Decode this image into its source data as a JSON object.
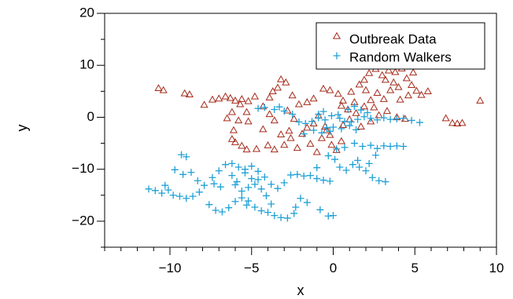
{
  "chart_data": {
    "type": "scatter",
    "title": "",
    "xlabel": "x",
    "ylabel": "y",
    "xlim": [
      -14,
      10
    ],
    "ylim": [
      -25,
      20
    ],
    "xticks": [
      -10,
      -5,
      0,
      5,
      10
    ],
    "xtick_labels": [
      "−10",
      "−5",
      "0",
      "5",
      "10"
    ],
    "yticks": [
      -20,
      -10,
      0,
      10,
      20
    ],
    "ytick_labels": [
      "−20",
      "−10",
      "0",
      "10",
      "20"
    ],
    "grid": false,
    "legend_position": "top-right",
    "series": [
      {
        "name": "Outbreak Data",
        "marker": "triangle-open",
        "color": "#a52a1a",
        "points": [
          [
            -10.7,
            5.6
          ],
          [
            -10.4,
            5.2
          ],
          [
            -9.1,
            4.6
          ],
          [
            -8.8,
            4.4
          ],
          [
            -7.9,
            2.4
          ],
          [
            -7.0,
            3.6
          ],
          [
            -6.6,
            4.0
          ],
          [
            -6.3,
            3.7
          ],
          [
            -6.0,
            3.2
          ],
          [
            -5.6,
            3.5
          ],
          [
            -5.2,
            3.1
          ],
          [
            -5.7,
            2.5
          ],
          [
            -6.2,
            1.0
          ],
          [
            -5.8,
            -0.6
          ],
          [
            -5.2,
            -0.8
          ],
          [
            -5.3,
            1.0
          ],
          [
            -4.8,
            4.0
          ],
          [
            -4.3,
            2.1
          ],
          [
            -3.9,
            3.8
          ],
          [
            -3.7,
            5.0
          ],
          [
            -3.4,
            5.7
          ],
          [
            -2.9,
            6.7
          ],
          [
            -3.2,
            7.3
          ],
          [
            -2.5,
            4.2
          ],
          [
            -2.1,
            2.5
          ],
          [
            -1.6,
            2.9
          ],
          [
            -1.2,
            3.6
          ],
          [
            -0.6,
            5.5
          ],
          [
            -0.2,
            5.2
          ],
          [
            0.3,
            4.5
          ],
          [
            0.6,
            3.2
          ],
          [
            1.1,
            4.9
          ],
          [
            1.6,
            6.3
          ],
          [
            1.9,
            7.2
          ],
          [
            2.2,
            8.5
          ],
          [
            2.6,
            9.3
          ],
          [
            3.0,
            8.1
          ],
          [
            3.4,
            9.0
          ],
          [
            3.8,
            8.7
          ],
          [
            4.2,
            9.4
          ],
          [
            4.5,
            7.5
          ],
          [
            4.8,
            6.2
          ],
          [
            4.6,
            4.2
          ],
          [
            4.1,
            3.4
          ],
          [
            3.5,
            5.2
          ],
          [
            3.1,
            3.5
          ],
          [
            2.7,
            4.7
          ],
          [
            2.3,
            3.3
          ],
          [
            1.9,
            2.1
          ],
          [
            1.4,
            0.8
          ],
          [
            0.9,
            1.5
          ],
          [
            0.5,
            2.2
          ],
          [
            5.1,
            5.1
          ],
          [
            5.4,
            4.3
          ],
          [
            5.8,
            5.0
          ],
          [
            4.0,
            5.8
          ],
          [
            -6.5,
            -0.2
          ],
          [
            -6.1,
            -2.5
          ],
          [
            -6.2,
            -4.2
          ],
          [
            -6.0,
            -4.8
          ],
          [
            -5.6,
            -5.5
          ],
          [
            -5.3,
            -6.2
          ],
          [
            -4.7,
            -6.1
          ],
          [
            -4.0,
            -5.4
          ],
          [
            -3.6,
            -6.2
          ],
          [
            -3.0,
            -5.3
          ],
          [
            -2.6,
            -4.0
          ],
          [
            -2.2,
            -5.9
          ],
          [
            -1.9,
            -3.2
          ],
          [
            -1.4,
            -5.1
          ],
          [
            -1.0,
            -6.7
          ],
          [
            -0.7,
            -4.0
          ],
          [
            -0.4,
            -2.5
          ],
          [
            -0.1,
            -5.3
          ],
          [
            0.2,
            -6.3
          ],
          [
            0.5,
            -4.6
          ],
          [
            -4.3,
            -2.3
          ],
          [
            -3.6,
            -0.6
          ],
          [
            -3.2,
            -3.3
          ],
          [
            -2.7,
            -2.6
          ],
          [
            -1.6,
            -2.0
          ],
          [
            -1.2,
            -1.2
          ],
          [
            -0.9,
            0.3
          ],
          [
            -0.5,
            -1.8
          ],
          [
            -0.2,
            -3.4
          ],
          [
            0.6,
            -1.5
          ],
          [
            1.0,
            -0.4
          ],
          [
            1.7,
            -1.8
          ],
          [
            2.3,
            -0.8
          ],
          [
            2.8,
            0.4
          ],
          [
            3.3,
            1.2
          ],
          [
            3.9,
            0.0
          ],
          [
            4.4,
            -0.3
          ],
          [
            6.9,
            -0.2
          ],
          [
            7.3,
            -1.1
          ],
          [
            7.6,
            -1.2
          ],
          [
            7.9,
            -1.1
          ],
          [
            9.0,
            3.2
          ],
          [
            -7.4,
            3.4
          ],
          [
            -3.9,
            0.6
          ],
          [
            -2.8,
            1.3
          ],
          [
            -2.4,
            -0.3
          ],
          [
            1.3,
            2.9
          ],
          [
            2.5,
            1.9
          ],
          [
            3.7,
            6.7
          ],
          [
            4.9,
            8.6
          ],
          [
            3.2,
            7.2
          ],
          [
            2.0,
            5.2
          ]
        ]
      },
      {
        "name": "Random Walkers",
        "marker": "plus",
        "color": "#1ea0d6",
        "points": [
          [
            -11.3,
            -13.8
          ],
          [
            -10.9,
            -14.1
          ],
          [
            -10.5,
            -14.6
          ],
          [
            -10.1,
            -14.0
          ],
          [
            -9.8,
            -15.0
          ],
          [
            -9.4,
            -15.2
          ],
          [
            -9.0,
            -15.6
          ],
          [
            -8.6,
            -15.2
          ],
          [
            -8.2,
            -14.4
          ],
          [
            -9.3,
            -7.2
          ],
          [
            -9.0,
            -7.6
          ],
          [
            -9.7,
            -10.1
          ],
          [
            -9.2,
            -11.0
          ],
          [
            -8.7,
            -10.6
          ],
          [
            -8.3,
            -12.2
          ],
          [
            -7.9,
            -13.1
          ],
          [
            -7.4,
            -11.6
          ],
          [
            -7.0,
            -10.3
          ],
          [
            -6.6,
            -9.1
          ],
          [
            -6.2,
            -8.9
          ],
          [
            -5.8,
            -9.6
          ],
          [
            -5.4,
            -10.7
          ],
          [
            -5.0,
            -11.8
          ],
          [
            -4.6,
            -12.0
          ],
          [
            -4.2,
            -11.5
          ],
          [
            -3.8,
            -12.9
          ],
          [
            -3.4,
            -13.7
          ],
          [
            -3.0,
            -12.6
          ],
          [
            -2.6,
            -11.1
          ],
          [
            -2.2,
            -11.0
          ],
          [
            -1.8,
            -11.3
          ],
          [
            -1.4,
            -11.2
          ],
          [
            -1.0,
            -11.8
          ],
          [
            -0.6,
            -12.1
          ],
          [
            -0.2,
            -12.3
          ],
          [
            -7.6,
            -16.8
          ],
          [
            -7.2,
            -17.9
          ],
          [
            -6.8,
            -18.2
          ],
          [
            -6.4,
            -17.4
          ],
          [
            -6.0,
            -16.2
          ],
          [
            -5.6,
            -15.5
          ],
          [
            -5.2,
            -16.1
          ],
          [
            -4.8,
            -17.3
          ],
          [
            -4.4,
            -18.0
          ],
          [
            -4.0,
            -18.3
          ],
          [
            -3.6,
            -18.9
          ],
          [
            -3.2,
            -19.3
          ],
          [
            -2.8,
            -19.4
          ],
          [
            -2.4,
            -18.5
          ],
          [
            -0.8,
            -17.8
          ],
          [
            0.0,
            -18.9
          ],
          [
            -0.3,
            -19.0
          ],
          [
            -6.0,
            -13.0
          ],
          [
            -5.6,
            -14.2
          ],
          [
            -5.2,
            -13.5
          ],
          [
            -4.8,
            -12.9
          ],
          [
            -4.4,
            -13.8
          ],
          [
            -6.2,
            -11.2
          ],
          [
            -5.9,
            -12.4
          ],
          [
            -5.4,
            -10.0
          ],
          [
            -5.0,
            -9.4
          ],
          [
            -4.6,
            -10.4
          ],
          [
            -0.3,
            -7.4
          ],
          [
            0.1,
            -8.1
          ],
          [
            0.4,
            -9.6
          ],
          [
            0.8,
            -10.2
          ],
          [
            1.2,
            -9.1
          ],
          [
            1.6,
            -9.6
          ],
          [
            2.0,
            -10.3
          ],
          [
            2.4,
            -11.6
          ],
          [
            2.8,
            -12.2
          ],
          [
            3.2,
            -12.4
          ],
          [
            0.2,
            -6.1
          ],
          [
            0.7,
            -5.8
          ],
          [
            1.3,
            -5.0
          ],
          [
            1.8,
            -5.6
          ],
          [
            2.3,
            -5.4
          ],
          [
            2.7,
            -6.0
          ],
          [
            3.1,
            -5.5
          ],
          [
            3.5,
            -5.6
          ],
          [
            3.9,
            -5.5
          ],
          [
            4.3,
            -5.6
          ],
          [
            -4.6,
            1.7
          ],
          [
            -4.2,
            1.9
          ],
          [
            -3.6,
            1.5
          ],
          [
            -3.0,
            1.2
          ],
          [
            -2.5,
            0.6
          ],
          [
            -2.1,
            -0.9
          ],
          [
            -1.7,
            -1.2
          ],
          [
            -1.3,
            -0.8
          ],
          [
            -0.9,
            -0.1
          ],
          [
            -0.5,
            -0.5
          ],
          [
            -0.1,
            0.3
          ],
          [
            0.3,
            0.5
          ],
          [
            0.7,
            -0.8
          ],
          [
            1.1,
            -0.9
          ],
          [
            1.5,
            -0.4
          ],
          [
            1.9,
            0.1
          ],
          [
            2.3,
            -0.2
          ],
          [
            2.7,
            -0.5
          ],
          [
            3.1,
            -0.1
          ],
          [
            3.5,
            -0.4
          ],
          [
            3.9,
            -0.3
          ],
          [
            4.3,
            -0.2
          ],
          [
            4.8,
            -0.6
          ],
          [
            5.3,
            -1.0
          ],
          [
            -1.8,
            -3.2
          ],
          [
            -1.2,
            -2.5
          ],
          [
            -0.7,
            -3.0
          ],
          [
            -0.2,
            -2.7
          ],
          [
            0.5,
            -2.2
          ],
          [
            1.0,
            -1.6
          ],
          [
            1.4,
            -2.4
          ],
          [
            0.9,
            1.5
          ],
          [
            1.3,
            2.1
          ],
          [
            1.7,
            1.4
          ],
          [
            2.1,
            0.9
          ],
          [
            -0.6,
            1.1
          ],
          [
            -0.9,
            0.6
          ],
          [
            0.0,
            -1.9
          ],
          [
            -0.4,
            -2.0
          ],
          [
            -7.3,
            -12.8
          ],
          [
            -6.9,
            -13.4
          ],
          [
            -2.0,
            -15.6
          ],
          [
            -1.6,
            -16.4
          ],
          [
            -2.3,
            -17.3
          ],
          [
            -10.3,
            -13.1
          ],
          [
            -1.0,
            -9.7
          ],
          [
            1.5,
            -8.3
          ],
          [
            2.2,
            -8.9
          ],
          [
            2.6,
            -7.3
          ],
          [
            -5.3,
            -16.9
          ],
          [
            -3.8,
            -16.7
          ],
          [
            -4.1,
            -15.1
          ],
          [
            0.4,
            -0.2
          ],
          [
            -3.3,
            2.0
          ]
        ]
      }
    ]
  }
}
